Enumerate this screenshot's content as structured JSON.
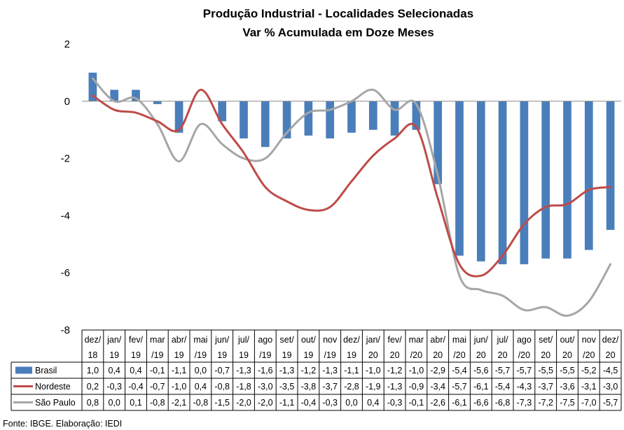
{
  "chart_data": {
    "type": "bar",
    "title": "Produção Industrial - Localidades Selecionadas",
    "subtitle": "Var % Acumulada em Doze Meses",
    "categories": [
      [
        "dez/",
        "18"
      ],
      [
        "jan/",
        "19"
      ],
      [
        "fev/",
        "19"
      ],
      [
        "mar",
        "/19"
      ],
      [
        "abr/",
        "19"
      ],
      [
        "mai",
        "/19"
      ],
      [
        "jun/",
        "19"
      ],
      [
        "jul/",
        "19"
      ],
      [
        "ago",
        "/19"
      ],
      [
        "set/",
        "19"
      ],
      [
        "out/",
        "19"
      ],
      [
        "nov",
        "/19"
      ],
      [
        "dez/",
        "19"
      ],
      [
        "jan/",
        "20"
      ],
      [
        "fev/",
        "20"
      ],
      [
        "mar",
        "/20"
      ],
      [
        "abr/",
        "20"
      ],
      [
        "mai",
        "/20"
      ],
      [
        "jun/",
        "20"
      ],
      [
        "jul/",
        "20"
      ],
      [
        "ago",
        "/20"
      ],
      [
        "set/",
        "20"
      ],
      [
        "out/",
        "20"
      ],
      [
        "nov",
        "/20"
      ],
      [
        "dez/",
        "20"
      ]
    ],
    "series": [
      {
        "name": "Brasil",
        "kind": "bar",
        "color": "#4a7ebb",
        "values": [
          1.0,
          0.4,
          0.4,
          -0.1,
          -1.1,
          0.0,
          -0.7,
          -1.3,
          -1.6,
          -1.3,
          -1.2,
          -1.3,
          -1.1,
          -1.0,
          -1.2,
          -1.0,
          -2.9,
          -5.4,
          -5.6,
          -5.7,
          -5.7,
          -5.5,
          -5.5,
          -5.2,
          -4.5
        ],
        "labels": [
          "1,0",
          "0,4",
          "0,4",
          "-0,1",
          "-1,1",
          "0,0",
          "-0,7",
          "-1,3",
          "-1,6",
          "-1,3",
          "-1,2",
          "-1,3",
          "-1,1",
          "-1,0",
          "-1,2",
          "-1,0",
          "-2,9",
          "-5,4",
          "-5,6",
          "-5,7",
          "-5,7",
          "-5,5",
          "-5,5",
          "-5,2",
          "-4,5"
        ]
      },
      {
        "name": "Nordeste",
        "kind": "line",
        "color": "#be4b48",
        "values": [
          0.2,
          -0.3,
          -0.4,
          -0.7,
          -1.0,
          0.4,
          -0.8,
          -1.8,
          -3.0,
          -3.5,
          -3.8,
          -3.7,
          -2.8,
          -1.9,
          -1.3,
          -0.9,
          -3.4,
          -5.7,
          -6.1,
          -5.4,
          -4.3,
          -3.7,
          -3.6,
          -3.1,
          -3.0
        ],
        "labels": [
          "0,2",
          "-0,3",
          "-0,4",
          "-0,7",
          "-1,0",
          "0,4",
          "-0,8",
          "-1,8",
          "-3,0",
          "-3,5",
          "-3,8",
          "-3,7",
          "-2,8",
          "-1,9",
          "-1,3",
          "-0,9",
          "-3,4",
          "-5,7",
          "-6,1",
          "-5,4",
          "-4,3",
          "-3,7",
          "-3,6",
          "-3,1",
          "-3,0"
        ]
      },
      {
        "name": "São Paulo",
        "kind": "line",
        "color": "#a6a6a6",
        "values": [
          0.8,
          0.0,
          0.1,
          -0.8,
          -2.1,
          -0.8,
          -1.5,
          -2.0,
          -2.0,
          -1.1,
          -0.4,
          -0.3,
          0.0,
          0.4,
          -0.3,
          -0.1,
          -2.6,
          -6.1,
          -6.6,
          -6.8,
          -7.3,
          -7.2,
          -7.5,
          -7.0,
          -5.7
        ],
        "labels": [
          "0,8",
          "0,0",
          "0,1",
          "-0,8",
          "-2,1",
          "-0,8",
          "-1,5",
          "-2,0",
          "-2,0",
          "-1,1",
          "-0,4",
          "-0,3",
          "0,0",
          "0,4",
          "-0,3",
          "-0,1",
          "-2,6",
          "-6,1",
          "-6,6",
          "-6,8",
          "-7,3",
          "-7,2",
          "-7,5",
          "-7,0",
          "-5,7"
        ]
      }
    ],
    "ylim": [
      -8,
      2
    ],
    "yticks": [
      "2",
      "0",
      "-2",
      "-4",
      "-6",
      "-8"
    ],
    "legend": "data-table",
    "grid": false
  },
  "source": "Fonte: IBGE. Elaboração: IEDI"
}
